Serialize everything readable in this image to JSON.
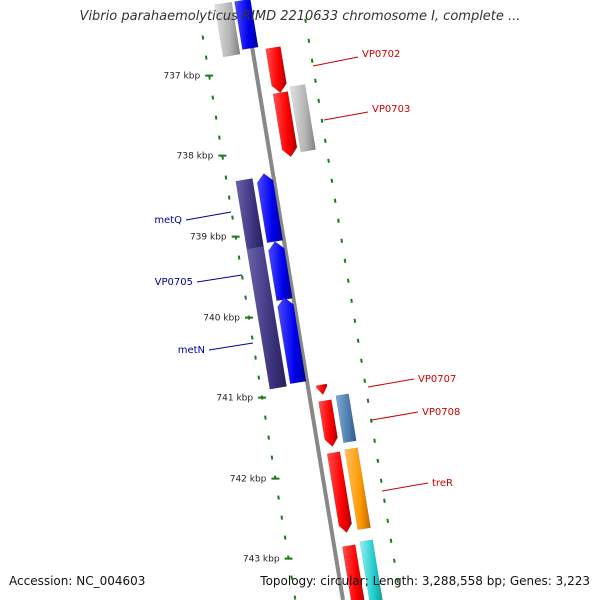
{
  "title": "Vibrio parahaemolyticus RIMD 2210633 chromosome I, complete ...",
  "footer": {
    "accession_label": "Accession:",
    "accession": "NC_004603",
    "topology_label": "Topology:",
    "topology": "circular",
    "length_label": "Length:",
    "length": "3,288,558 bp",
    "genes_label": "Genes:",
    "genes": "3,223"
  },
  "ruler": [
    {
      "label": "737 kbp"
    },
    {
      "label": "738 kbp"
    },
    {
      "label": "739 kbp"
    },
    {
      "label": "740 kbp"
    },
    {
      "label": "741 kbp"
    },
    {
      "label": "742 kbp"
    },
    {
      "label": "743 kbp"
    }
  ],
  "gene_labels": [
    {
      "name": "VP0702",
      "strand": "forward"
    },
    {
      "name": "VP0703",
      "strand": "forward"
    },
    {
      "name": "metQ",
      "strand": "reverse"
    },
    {
      "name": "VP0705",
      "strand": "reverse"
    },
    {
      "name": "metN",
      "strand": "reverse"
    },
    {
      "name": "VP0707",
      "strand": "forward"
    },
    {
      "name": "VP0708",
      "strand": "forward"
    },
    {
      "name": "treR",
      "strand": "forward"
    }
  ],
  "colors": {
    "forward_label": "#cc0000",
    "reverse_label": "#000099",
    "backbone": "#888888",
    "tick": "#1a7a1a",
    "cds_red": "#ff0000",
    "cds_blue": "#0000ee",
    "cds_navy": "#3d3580",
    "cds_gray": "#b4b4b4",
    "cds_steel": "#4f7fb0",
    "cds_orange": "#ff9900",
    "cds_cyan": "#22cccc"
  }
}
